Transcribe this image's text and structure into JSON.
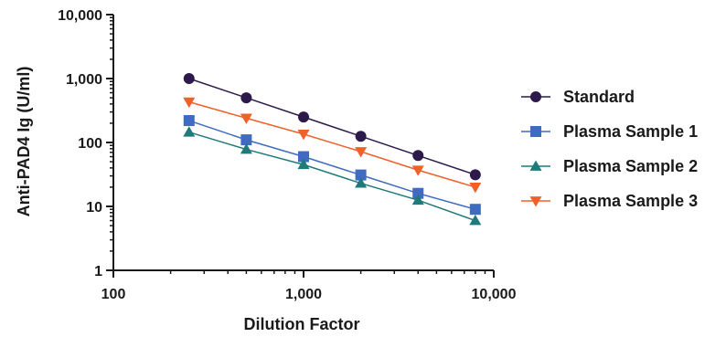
{
  "chart_data": {
    "type": "line",
    "xlabel": "Dilution Factor",
    "ylabel": "Anti-PAD4 Ig (U/ml)",
    "xscale": "log",
    "yscale": "log",
    "xlim": [
      100,
      10000
    ],
    "ylim": [
      1,
      10000
    ],
    "x_ticks": [
      {
        "value": 100,
        "label": "100"
      },
      {
        "value": 1000,
        "label": "1,000"
      },
      {
        "value": 10000,
        "label": "10,000"
      }
    ],
    "y_ticks": [
      {
        "value": 1,
        "label": "1"
      },
      {
        "value": 10,
        "label": "10"
      },
      {
        "value": 100,
        "label": "100"
      },
      {
        "value": 1000,
        "label": "1,000"
      },
      {
        "value": 10000,
        "label": "10,000"
      }
    ],
    "grid": false,
    "legend_position": "right",
    "x": [
      250,
      500,
      1000,
      2000,
      4000,
      8000
    ],
    "series": [
      {
        "name": "Standard",
        "color": "#2b1a4a",
        "marker": "circle",
        "values": [
          1000,
          500,
          250,
          125,
          62.5,
          31.25
        ]
      },
      {
        "name": "Plasma Sample 1",
        "color": "#3f6cc0",
        "marker": "square",
        "values": [
          220,
          110,
          60,
          31,
          16,
          9
        ]
      },
      {
        "name": "Plasma Sample 2",
        "color": "#1f7a7a",
        "marker": "triangle-up",
        "values": [
          145,
          78,
          45,
          23,
          12.5,
          6
        ]
      },
      {
        "name": "Plasma Sample 3",
        "color": "#f2602a",
        "marker": "triangle-down",
        "values": [
          430,
          240,
          135,
          72,
          37,
          20
        ]
      }
    ]
  }
}
